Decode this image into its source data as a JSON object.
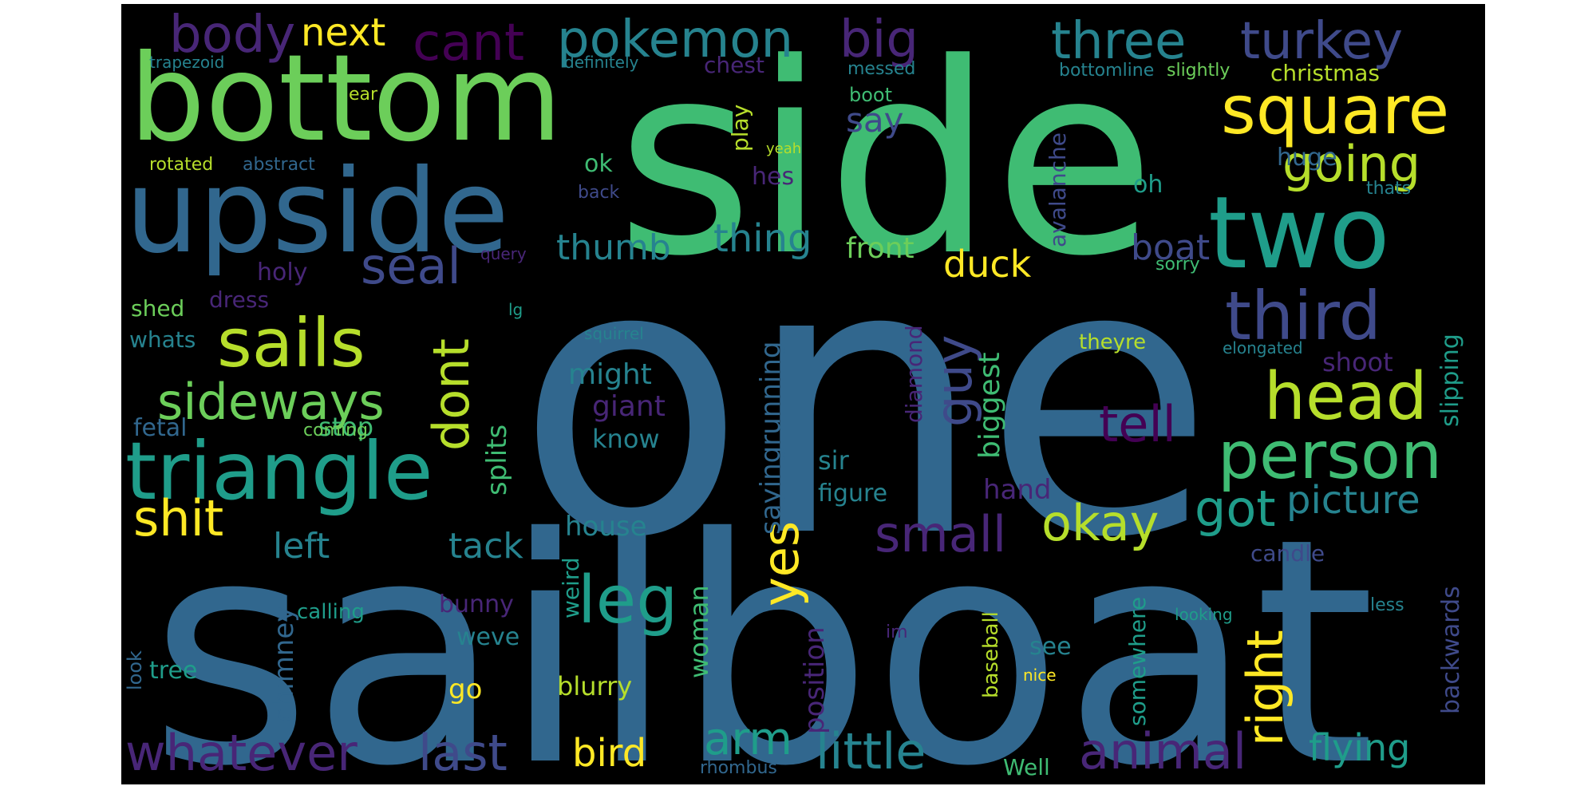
{
  "word_cloud": {
    "background": "#000000",
    "palette": [
      "#440154",
      "#482677",
      "#3f4a8a",
      "#31678e",
      "#26838f",
      "#1f9d8a",
      "#3fbc73",
      "#6cce5a",
      "#b6de2b",
      "#fee825"
    ],
    "words": [
      "one",
      "side",
      "sailboat",
      "bottom",
      "upside",
      "two",
      "triangle",
      "square",
      "person",
      "third",
      "head",
      "sails",
      "three",
      "turkey",
      "pokemon",
      "big",
      "cant",
      "body",
      "next",
      "leg",
      "sideways",
      "going",
      "seal",
      "dont",
      "guy",
      "tell",
      "shit",
      "small",
      "okay",
      "got",
      "picture",
      "yes",
      "right",
      "whatever",
      "last",
      "little",
      "animal",
      "arm",
      "flying",
      "bird",
      "thing",
      "thumb",
      "duck",
      "boat",
      "front",
      "say",
      "left",
      "tack",
      "house",
      "might",
      "giant",
      "know",
      "splits",
      "stop",
      "fetal",
      "biggest",
      "diamond",
      "sir",
      "figure",
      "hand",
      "sayingrunning",
      "position",
      "woman",
      "blurry",
      "go",
      "weve",
      "bunny",
      "calling",
      "chimney",
      "tree",
      "look",
      "see",
      "somewhere",
      "backwards",
      "baseball",
      "candle",
      "shoot",
      "slipping",
      "theyre",
      "elongated",
      "squirrel",
      "lg",
      "query",
      "whats",
      "shed",
      "dress",
      "holy",
      "ok",
      "hes",
      "play",
      "chest",
      "messed",
      "boot",
      "definitely",
      "trapezoid",
      "ear",
      "rotated",
      "abstract",
      "back",
      "yeah",
      "huge",
      "oh",
      "thats",
      "christmas",
      "bottomline",
      "slightly",
      "avalanche",
      "sorry",
      "coming",
      "weird",
      "im",
      "nice",
      "looking",
      "less",
      "rhombus",
      "Well"
    ]
  }
}
